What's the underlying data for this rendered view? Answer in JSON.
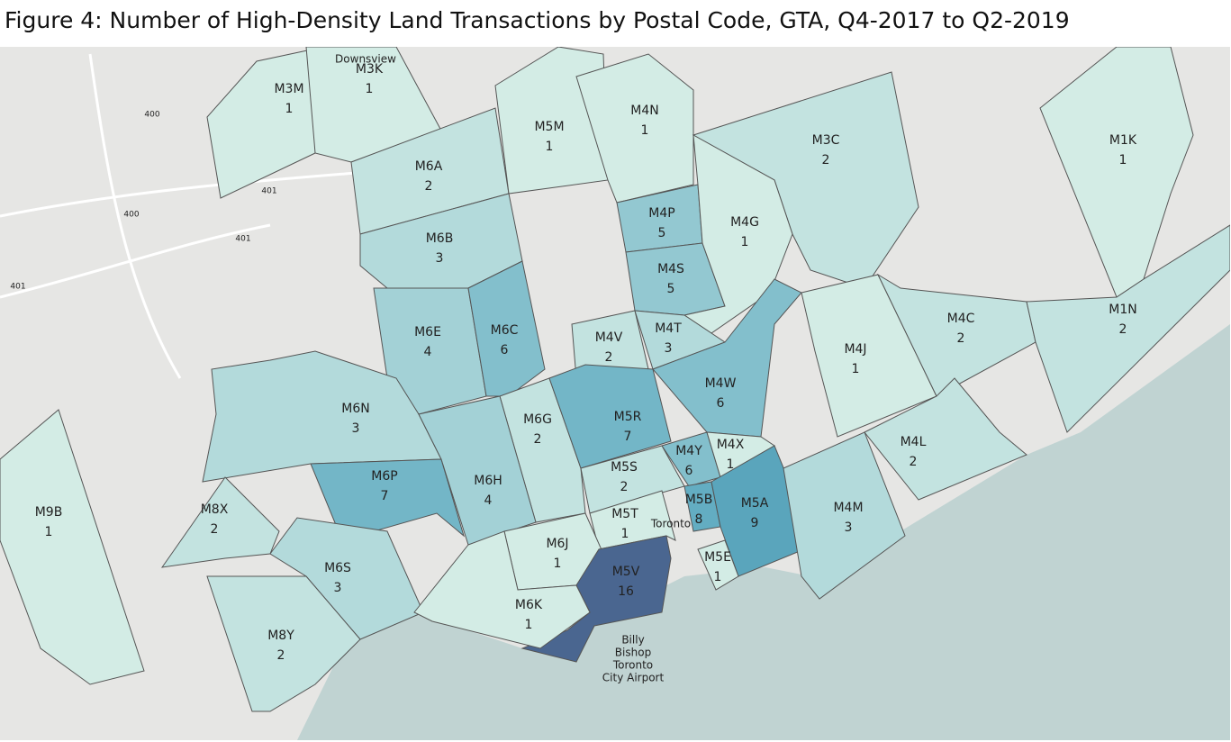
{
  "title": "Figure 4: Number of High-Density Land Transactions by Postal Code, GTA, Q4-2017 to Q2-2019",
  "color_range": [
    "#d3ece5",
    "#5ba9bf",
    "#4a6690"
  ],
  "regions": [
    {
      "code": "M3M",
      "count": 1
    },
    {
      "code": "M3K",
      "count": 1
    },
    {
      "code": "M6A",
      "count": 2
    },
    {
      "code": "M5M",
      "count": 1
    },
    {
      "code": "M4N",
      "count": 1
    },
    {
      "code": "M3C",
      "count": 2
    },
    {
      "code": "M1K",
      "count": 1
    },
    {
      "code": "M4P",
      "count": 5
    },
    {
      "code": "M4S",
      "count": 5
    },
    {
      "code": "M4G",
      "count": 1
    },
    {
      "code": "M6B",
      "count": 3
    },
    {
      "code": "M6E",
      "count": 4
    },
    {
      "code": "M6C",
      "count": 6
    },
    {
      "code": "M4V",
      "count": 2
    },
    {
      "code": "M4T",
      "count": 3
    },
    {
      "code": "M4W",
      "count": 6
    },
    {
      "code": "M4J",
      "count": 1
    },
    {
      "code": "M4C",
      "count": 2
    },
    {
      "code": "M1N",
      "count": 2
    },
    {
      "code": "M6N",
      "count": 3
    },
    {
      "code": "M6G",
      "count": 2
    },
    {
      "code": "M5R",
      "count": 7
    },
    {
      "code": "M4Y",
      "count": 6
    },
    {
      "code": "M4X",
      "count": 1
    },
    {
      "code": "M4L",
      "count": 2
    },
    {
      "code": "M6P",
      "count": 7
    },
    {
      "code": "M6H",
      "count": 4
    },
    {
      "code": "M5S",
      "count": 2
    },
    {
      "code": "M5B",
      "count": 8
    },
    {
      "code": "M5A",
      "count": 9
    },
    {
      "code": "M4M",
      "count": 3
    },
    {
      "code": "M9B",
      "count": 1
    },
    {
      "code": "M8X",
      "count": 2
    },
    {
      "code": "M5T",
      "count": 1
    },
    {
      "code": "M6J",
      "count": 1
    },
    {
      "code": "M6S",
      "count": 3
    },
    {
      "code": "M5E",
      "count": 1
    },
    {
      "code": "M5V",
      "count": 16
    },
    {
      "code": "M6K",
      "count": 1
    },
    {
      "code": "M8Y",
      "count": 2
    }
  ],
  "basemap_labels": [
    "Downsview",
    "400",
    "401",
    "400",
    "401",
    "401",
    "Toronto",
    "Billy",
    "Bishop",
    "Toronto",
    "City Airport"
  ]
}
